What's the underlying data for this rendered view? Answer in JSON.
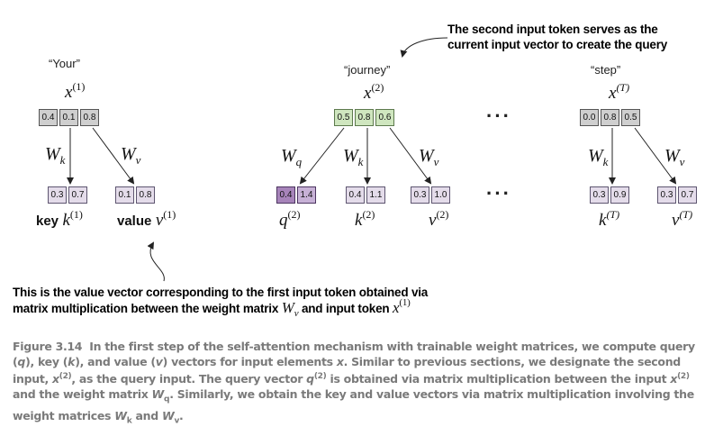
{
  "tokens": [
    {
      "quote": "“Your”",
      "x_sup": "(1)",
      "x_vals": [
        "0.4",
        "0.1",
        "0.8"
      ]
    },
    {
      "quote": "“journey”",
      "x_sup": "(2)",
      "x_vals": [
        "0.5",
        "0.8",
        "0.6"
      ]
    },
    {
      "quote": "“step”",
      "x_sup": "(T)",
      "x_vals": [
        "0.0",
        "0.8",
        "0.5"
      ]
    }
  ],
  "symbols": {
    "x": "x",
    "q": "q",
    "k": "k",
    "v": "v",
    "W": "W",
    "sub_q": "q",
    "sub_k": "k",
    "sub_v": "v"
  },
  "token1": {
    "key_vals": [
      "0.3",
      "0.7"
    ],
    "value_vals": [
      "0.1",
      "0.8"
    ],
    "key_word": "key",
    "value_word": "value",
    "sup": "(1)"
  },
  "token2": {
    "query_vals": [
      "0.4",
      "1.4"
    ],
    "key_vals": [
      "0.4",
      "1.1"
    ],
    "value_vals": [
      "0.3",
      "1.0"
    ],
    "sup": "(2)"
  },
  "tokenT": {
    "key_vals": [
      "0.3",
      "0.9"
    ],
    "value_vals": [
      "0.3",
      "0.7"
    ],
    "sup": "(T)"
  },
  "ellipsis": "···",
  "annotation_top": [
    "The second input token serves as the",
    "current input vector to create the query"
  ],
  "annotation_bottom": {
    "line1": "This is the value vector corresponding to the first input token obtained via",
    "line2": "matrix multiplication between the weight matrix",
    "mid": "and input token"
  },
  "caption": {
    "figure": "Figure 3.14",
    "text1": "In the first step of the self-attention mechanism with trainable weight matrices, we compute query (",
    "q": "q",
    "text2": "), key (",
    "k": "k",
    "text3": "), and value (",
    "v": "v",
    "text4": ") vectors for input elements ",
    "x": "x",
    "text5": ". Similar to previous sections, we designate the second input, ",
    "x2": "x",
    "sup2": "(2)",
    "text6": ", as the query input. The query vector ",
    "q2": "q",
    "sup3": "(2)",
    "text7": " is obtained via matrix multiplication between the input ",
    "x3": "x",
    "sup4": "(2)",
    "text8": " and the weight matrix ",
    "W": "W",
    "subq": "q",
    "text9": ". Similarly, we obtain the key and value vectors via matrix multiplication involving the weight matrices ",
    "W2": "W",
    "subk": "k",
    "text10": " and ",
    "W3": "W",
    "subv": "v",
    "text11": "."
  }
}
